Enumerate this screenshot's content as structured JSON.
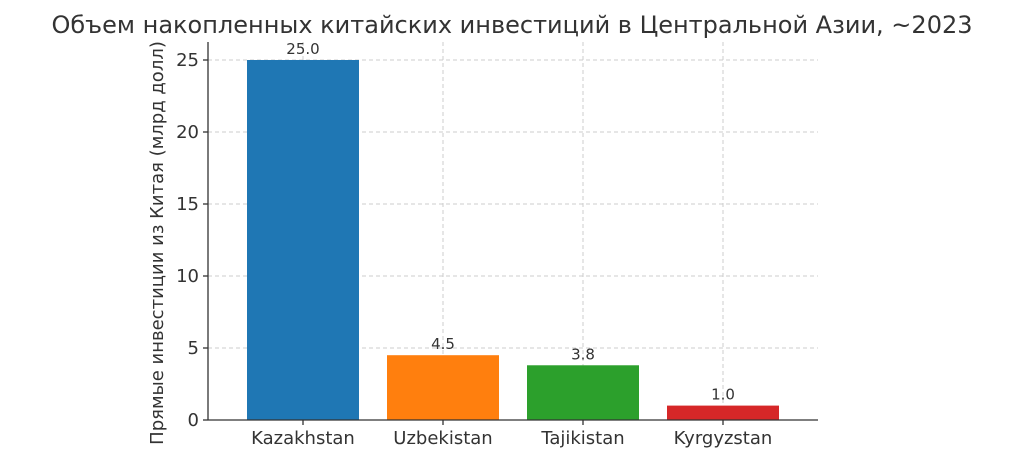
{
  "chart_data": {
    "type": "bar",
    "title": "Объем накопленных китайских инвестиций в Центральной Азии, ~2023",
    "xlabel": "",
    "ylabel": "Прямые инвестиции из Китая (млрд долл)",
    "categories": [
      "Kazakhstan",
      "Uzbekistan",
      "Tajikistan",
      "Kyrgyzstan"
    ],
    "values": [
      25.0,
      4.5,
      3.8,
      1.0
    ],
    "data_labels": [
      "25.0",
      "4.5",
      "3.8",
      "1.0"
    ],
    "colors": [
      "#1f77b4",
      "#ff7f0e",
      "#2ca02c",
      "#d62728"
    ],
    "yticks": [
      0,
      5,
      10,
      15,
      20,
      25
    ],
    "ylim": [
      0,
      26.25
    ],
    "grid": true,
    "legend": "none"
  }
}
